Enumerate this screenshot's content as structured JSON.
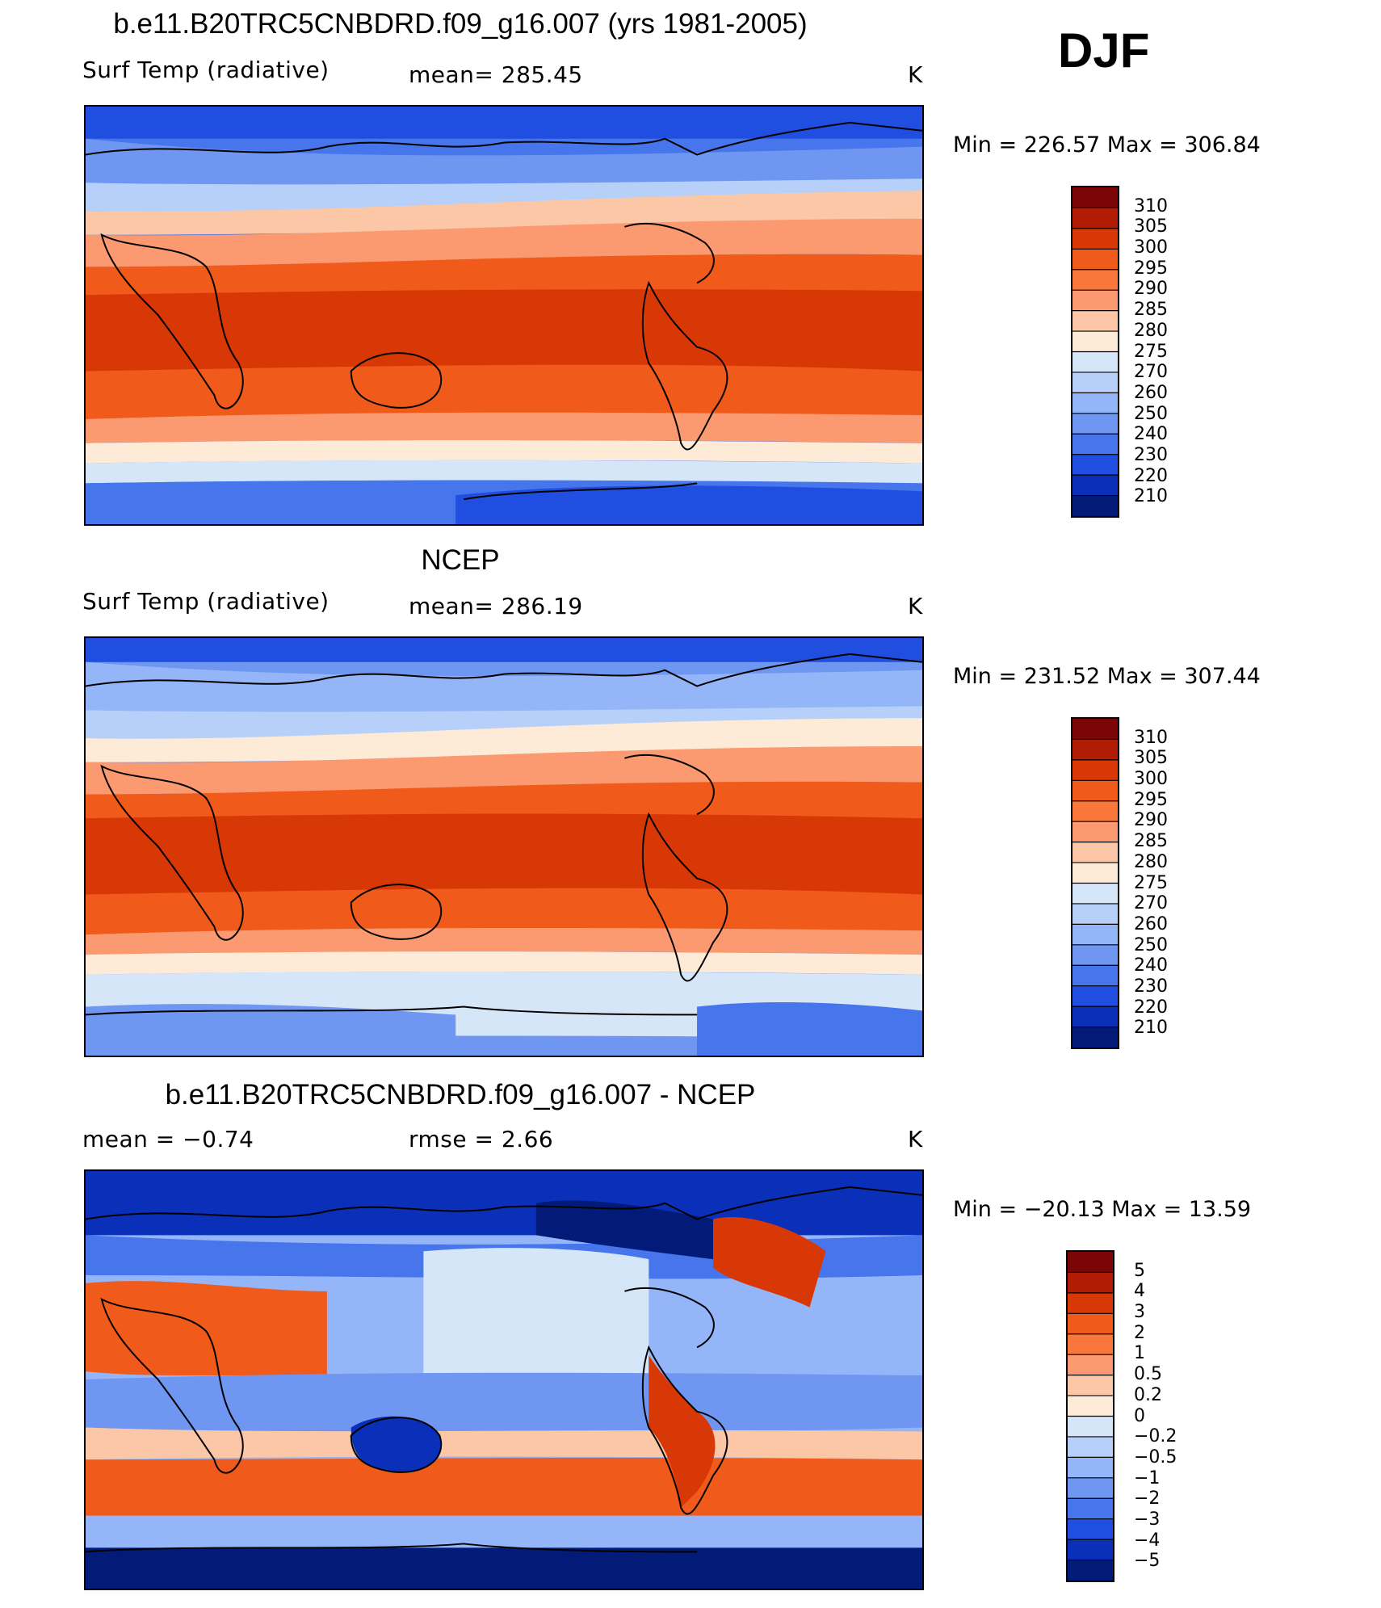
{
  "season": "DJF",
  "panels": [
    {
      "title": "b.e11.B20TRC5CNBDRD.f09_g16.007 (yrs 1981-2005)",
      "left_label": "Surf Temp (radiative)",
      "center_label": "mean=  285.45",
      "units": "K",
      "stats": "Min  =  226.57  Max  =  306.84",
      "kind": "field"
    },
    {
      "title": "NCEP",
      "left_label": "Surf Temp (radiative)",
      "center_label": "mean=  286.19",
      "units": "K",
      "stats": "Min  =  231.52  Max  =  307.44",
      "kind": "field"
    },
    {
      "title": "b.e11.B20TRC5CNBDRD.f09_g16.007 - NCEP",
      "left_label": "mean  =    −0.74",
      "center_label": "rmse  =     2.66",
      "units": "K",
      "stats": "Min  =  −20.13  Max  =    13.59",
      "kind": "diff"
    }
  ],
  "colorbars": {
    "field": {
      "labels": [
        "310",
        "305",
        "300",
        "295",
        "290",
        "285",
        "280",
        "275",
        "270",
        "260",
        "250",
        "240",
        "230",
        "220",
        "210"
      ],
      "colors": [
        "#7a0606",
        "#b01c04",
        "#d83806",
        "#f05a1a",
        "#f9773a",
        "#fb9a70",
        "#fcc7a6",
        "#fdebd8",
        "#d6e6f9",
        "#b6d0fa",
        "#94b6f8",
        "#6f97f1",
        "#4675ec",
        "#1f4ee0",
        "#0a2fb8",
        "#021a78"
      ]
    },
    "diff": {
      "labels": [
        "5",
        "4",
        "3",
        "2",
        "1",
        "0.5",
        "0.2",
        "0",
        "−0.2",
        "−0.5",
        "−1",
        "−2",
        "−3",
        "−4",
        "−5"
      ],
      "colors": [
        "#7a0606",
        "#b01c04",
        "#d83806",
        "#f05a1a",
        "#f9773a",
        "#fb9a70",
        "#fcc7a6",
        "#fdebd8",
        "#d6e6f9",
        "#b6d0fa",
        "#94b6f8",
        "#6f97f1",
        "#4675ec",
        "#1f4ee0",
        "#0a2fb8",
        "#021a78"
      ]
    }
  }
}
